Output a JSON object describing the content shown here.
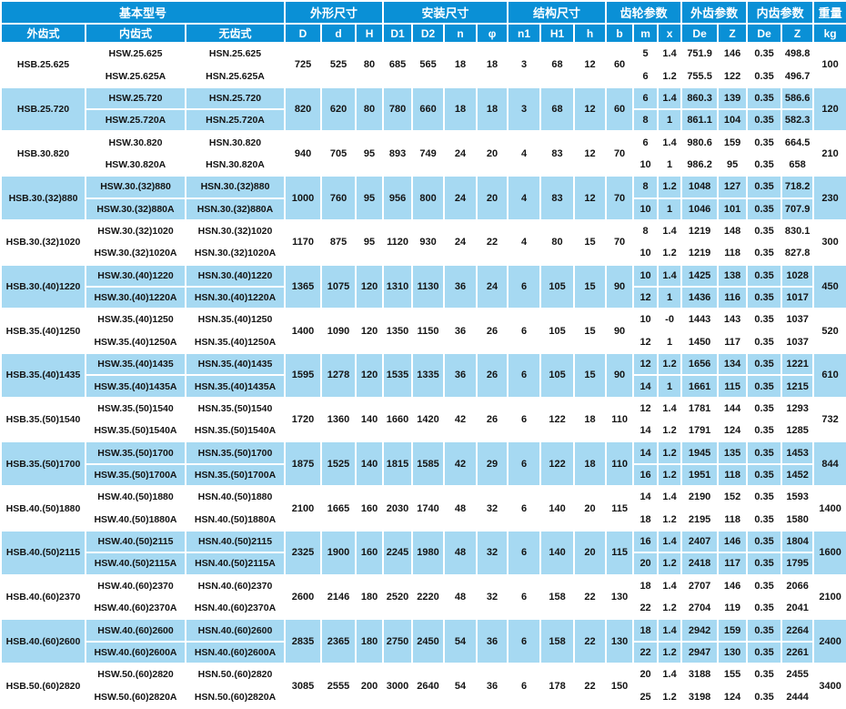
{
  "colors": {
    "header_bg": "#0a90d6",
    "row_alt_bg": "#a6d9f2",
    "row_bg": "#ffffff",
    "header_text": "#ffffff",
    "cell_text": "#141414",
    "grid_line": "#ffffff"
  },
  "table": {
    "header_groups": [
      {
        "label": "基本型号",
        "colspan": 3,
        "name": "basic-model"
      },
      {
        "label": "外形尺寸",
        "colspan": 3,
        "name": "outline-dimensions"
      },
      {
        "label": "安装尺寸",
        "colspan": 4,
        "name": "mounting-dimensions"
      },
      {
        "label": "结构尺寸",
        "colspan": 3,
        "name": "structure-dimensions"
      },
      {
        "label": "齿轮参数",
        "colspan": 3,
        "name": "gear-parameters"
      },
      {
        "label": "外齿参数",
        "colspan": 2,
        "name": "external-gear-parameters"
      },
      {
        "label": "内齿参数",
        "colspan": 2,
        "name": "internal-gear-parameters"
      },
      {
        "label": "重量",
        "colspan": 1,
        "name": "weight"
      }
    ],
    "sub_headers": [
      "外齿式",
      "内齿式",
      "无齿式",
      "D",
      "d",
      "H",
      "D1",
      "D2",
      "n",
      "φ",
      "n1",
      "H1",
      "h",
      "b",
      "m",
      "x",
      "De",
      "Z",
      "De",
      "Z",
      "kg"
    ],
    "groups": [
      {
        "hsb": "HSB.25.625",
        "hsw": [
          "HSW.25.625",
          "HSW.25.625A"
        ],
        "hsn": [
          "HSN.25.625",
          "HSN.25.625A"
        ],
        "D": "725",
        "d": "525",
        "H": "80",
        "D1": "685",
        "D2": "565",
        "n": "18",
        "phi": "18",
        "n1": "3",
        "H1": "68",
        "h": "12",
        "b": "60",
        "rows": [
          [
            "5",
            "1.4",
            "751.9",
            "146",
            "0.35",
            "498.8"
          ],
          [
            "6",
            "1.2",
            "755.5",
            "122",
            "0.35",
            "496.7"
          ]
        ],
        "kg": "100"
      },
      {
        "hsb": "HSB.25.720",
        "hsw": [
          "HSW.25.720",
          "HSW.25.720A"
        ],
        "hsn": [
          "HSN.25.720",
          "HSN.25.720A"
        ],
        "D": "820",
        "d": "620",
        "H": "80",
        "D1": "780",
        "D2": "660",
        "n": "18",
        "phi": "18",
        "n1": "3",
        "H1": "68",
        "h": "12",
        "b": "60",
        "rows": [
          [
            "6",
            "1.4",
            "860.3",
            "139",
            "0.35",
            "586.6"
          ],
          [
            "8",
            "1",
            "861.1",
            "104",
            "0.35",
            "582.3"
          ]
        ],
        "kg": "120"
      },
      {
        "hsb": "HSB.30.820",
        "hsw": [
          "HSW.30.820",
          "HSW.30.820A"
        ],
        "hsn": [
          "HSN.30.820",
          "HSN.30.820A"
        ],
        "D": "940",
        "d": "705",
        "H": "95",
        "D1": "893",
        "D2": "749",
        "n": "24",
        "phi": "20",
        "n1": "4",
        "H1": "83",
        "h": "12",
        "b": "70",
        "rows": [
          [
            "6",
            "1.4",
            "980.6",
            "159",
            "0.35",
            "664.5"
          ],
          [
            "10",
            "1",
            "986.2",
            "95",
            "0.35",
            "658"
          ]
        ],
        "kg": "210"
      },
      {
        "hsb": "HSB.30.(32)880",
        "hsw": [
          "HSW.30.(32)880",
          "HSW.30.(32)880A"
        ],
        "hsn": [
          "HSN.30.(32)880",
          "HSN.30.(32)880A"
        ],
        "D": "1000",
        "d": "760",
        "H": "95",
        "D1": "956",
        "D2": "800",
        "n": "24",
        "phi": "20",
        "n1": "4",
        "H1": "83",
        "h": "12",
        "b": "70",
        "rows": [
          [
            "8",
            "1.2",
            "1048",
            "127",
            "0.35",
            "718.2"
          ],
          [
            "10",
            "1",
            "1046",
            "101",
            "0.35",
            "707.9"
          ]
        ],
        "kg": "230"
      },
      {
        "hsb": "HSB.30.(32)1020",
        "hsw": [
          "HSW.30.(32)1020",
          "HSW.30.(32)1020A"
        ],
        "hsn": [
          "HSN.30.(32)1020",
          "HSN.30.(32)1020A"
        ],
        "D": "1170",
        "d": "875",
        "H": "95",
        "D1": "1120",
        "D2": "930",
        "n": "24",
        "phi": "22",
        "n1": "4",
        "H1": "80",
        "h": "15",
        "b": "70",
        "rows": [
          [
            "8",
            "1.4",
            "1219",
            "148",
            "0.35",
            "830.1"
          ],
          [
            "10",
            "1.2",
            "1219",
            "118",
            "0.35",
            "827.8"
          ]
        ],
        "kg": "300"
      },
      {
        "hsb": "HSB.30.(40)1220",
        "hsw": [
          "HSW.30.(40)1220",
          "HSW.30.(40)1220A"
        ],
        "hsn": [
          "HSN.30.(40)1220",
          "HSN.30.(40)1220A"
        ],
        "D": "1365",
        "d": "1075",
        "H": "120",
        "D1": "1310",
        "D2": "1130",
        "n": "36",
        "phi": "24",
        "n1": "6",
        "H1": "105",
        "h": "15",
        "b": "90",
        "rows": [
          [
            "10",
            "1.4",
            "1425",
            "138",
            "0.35",
            "1028"
          ],
          [
            "12",
            "1",
            "1436",
            "116",
            "0.35",
            "1017"
          ]
        ],
        "kg": "450"
      },
      {
        "hsb": "HSB.35.(40)1250",
        "hsw": [
          "HSW.35.(40)1250",
          "HSW.35.(40)1250A"
        ],
        "hsn": [
          "HSN.35.(40)1250",
          "HSN.35.(40)1250A"
        ],
        "D": "1400",
        "d": "1090",
        "H": "120",
        "D1": "1350",
        "D2": "1150",
        "n": "36",
        "phi": "26",
        "n1": "6",
        "H1": "105",
        "h": "15",
        "b": "90",
        "rows": [
          [
            "10",
            "-0",
            "1443",
            "143",
            "0.35",
            "1037"
          ],
          [
            "12",
            "1",
            "1450",
            "117",
            "0.35",
            "1037"
          ]
        ],
        "kg": "520"
      },
      {
        "hsb": "HSB.35.(40)1435",
        "hsw": [
          "HSW.35.(40)1435",
          "HSW.35.(40)1435A"
        ],
        "hsn": [
          "HSN.35.(40)1435",
          "HSN.35.(40)1435A"
        ],
        "D": "1595",
        "d": "1278",
        "H": "120",
        "D1": "1535",
        "D2": "1335",
        "n": "36",
        "phi": "26",
        "n1": "6",
        "H1": "105",
        "h": "15",
        "b": "90",
        "rows": [
          [
            "12",
            "1.2",
            "1656",
            "134",
            "0.35",
            "1221"
          ],
          [
            "14",
            "1",
            "1661",
            "115",
            "0.35",
            "1215"
          ]
        ],
        "kg": "610"
      },
      {
        "hsb": "HSB.35.(50)1540",
        "hsw": [
          "HSW.35.(50)1540",
          "HSW.35.(50)1540A"
        ],
        "hsn": [
          "HSN.35.(50)1540",
          "HSN.35.(50)1540A"
        ],
        "D": "1720",
        "d": "1360",
        "H": "140",
        "D1": "1660",
        "D2": "1420",
        "n": "42",
        "phi": "26",
        "n1": "6",
        "H1": "122",
        "h": "18",
        "b": "110",
        "rows": [
          [
            "12",
            "1.4",
            "1781",
            "144",
            "0.35",
            "1293"
          ],
          [
            "14",
            "1.2",
            "1791",
            "124",
            "0.35",
            "1285"
          ]
        ],
        "kg": "732"
      },
      {
        "hsb": "HSB.35.(50)1700",
        "hsw": [
          "HSW.35.(50)1700",
          "HSW.35.(50)1700A"
        ],
        "hsn": [
          "HSN.35.(50)1700",
          "HSN.35.(50)1700A"
        ],
        "D": "1875",
        "d": "1525",
        "H": "140",
        "D1": "1815",
        "D2": "1585",
        "n": "42",
        "phi": "29",
        "n1": "6",
        "H1": "122",
        "h": "18",
        "b": "110",
        "rows": [
          [
            "14",
            "1.2",
            "1945",
            "135",
            "0.35",
            "1453"
          ],
          [
            "16",
            "1.2",
            "1951",
            "118",
            "0.35",
            "1452"
          ]
        ],
        "kg": "844"
      },
      {
        "hsb": "HSB.40.(50)1880",
        "hsw": [
          "HSW.40.(50)1880",
          "HSW.40.(50)1880A"
        ],
        "hsn": [
          "HSN.40.(50)1880",
          "HSN.40.(50)1880A"
        ],
        "D": "2100",
        "d": "1665",
        "H": "160",
        "D1": "2030",
        "D2": "1740",
        "n": "48",
        "phi": "32",
        "n1": "6",
        "H1": "140",
        "h": "20",
        "b": "115",
        "rows": [
          [
            "14",
            "1.4",
            "2190",
            "152",
            "0.35",
            "1593"
          ],
          [
            "18",
            "1.2",
            "2195",
            "118",
            "0.35",
            "1580"
          ]
        ],
        "kg": "1400"
      },
      {
        "hsb": "HSB.40.(50)2115",
        "hsw": [
          "HSW.40.(50)2115",
          "HSW.40.(50)2115A"
        ],
        "hsn": [
          "HSN.40.(50)2115",
          "HSN.40.(50)2115A"
        ],
        "D": "2325",
        "d": "1900",
        "H": "160",
        "D1": "2245",
        "D2": "1980",
        "n": "48",
        "phi": "32",
        "n1": "6",
        "H1": "140",
        "h": "20",
        "b": "115",
        "rows": [
          [
            "16",
            "1.4",
            "2407",
            "146",
            "0.35",
            "1804"
          ],
          [
            "20",
            "1.2",
            "2418",
            "117",
            "0.35",
            "1795"
          ]
        ],
        "kg": "1600"
      },
      {
        "hsb": "HSB.40.(60)2370",
        "hsw": [
          "HSW.40.(60)2370",
          "HSW.40.(60)2370A"
        ],
        "hsn": [
          "HSN.40.(60)2370",
          "HSN.40.(60)2370A"
        ],
        "D": "2600",
        "d": "2146",
        "H": "180",
        "D1": "2520",
        "D2": "2220",
        "n": "48",
        "phi": "32",
        "n1": "6",
        "H1": "158",
        "h": "22",
        "b": "130",
        "rows": [
          [
            "18",
            "1.4",
            "2707",
            "146",
            "0.35",
            "2066"
          ],
          [
            "22",
            "1.2",
            "2704",
            "119",
            "0.35",
            "2041"
          ]
        ],
        "kg": "2100"
      },
      {
        "hsb": "HSB.40.(60)2600",
        "hsw": [
          "HSW.40.(60)2600",
          "HSW.40.(60)2600A"
        ],
        "hsn": [
          "HSN.40.(60)2600",
          "HSN.40.(60)2600A"
        ],
        "D": "2835",
        "d": "2365",
        "H": "180",
        "D1": "2750",
        "D2": "2450",
        "n": "54",
        "phi": "36",
        "n1": "6",
        "H1": "158",
        "h": "22",
        "b": "130",
        "rows": [
          [
            "18",
            "1.4",
            "2942",
            "159",
            "0.35",
            "2264"
          ],
          [
            "22",
            "1.2",
            "2947",
            "130",
            "0.35",
            "2261"
          ]
        ],
        "kg": "2400"
      },
      {
        "hsb": "HSB.50.(60)2820",
        "hsw": [
          "HSW.50.(60)2820",
          "HSW.50.(60)2820A"
        ],
        "hsn": [
          "HSN.50.(60)2820",
          "HSN.50.(60)2820A"
        ],
        "D": "3085",
        "d": "2555",
        "H": "200",
        "D1": "3000",
        "D2": "2640",
        "n": "54",
        "phi": "36",
        "n1": "6",
        "H1": "178",
        "h": "22",
        "b": "150",
        "rows": [
          [
            "20",
            "1.4",
            "3188",
            "155",
            "0.35",
            "2455"
          ],
          [
            "25",
            "1.2",
            "3198",
            "124",
            "0.35",
            "2444"
          ]
        ],
        "kg": "3400"
      }
    ]
  }
}
